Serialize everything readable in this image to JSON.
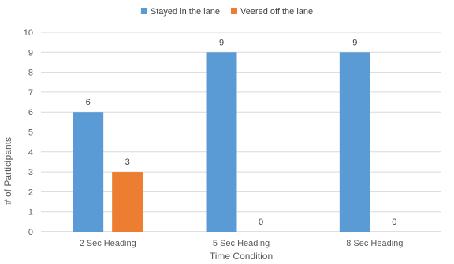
{
  "chart_data": {
    "type": "bar",
    "categories": [
      "2 Sec Heading",
      "5 Sec Heading",
      "8 Sec Heading"
    ],
    "series": [
      {
        "name": "Stayed in the lane",
        "values": [
          6,
          9,
          9
        ],
        "color": "#5B9BD5"
      },
      {
        "name": "Veered off the lane",
        "values": [
          3,
          0,
          0
        ],
        "color": "#ED7D31"
      }
    ],
    "title": "",
    "xlabel": "Time Condition",
    "ylabel": "# of Participants",
    "ylim": [
      0,
      10
    ],
    "yticks": [
      0,
      1,
      2,
      3,
      4,
      5,
      6,
      7,
      8,
      9,
      10
    ],
    "grid": true,
    "legend_position": "top-center",
    "data_labels": true
  }
}
